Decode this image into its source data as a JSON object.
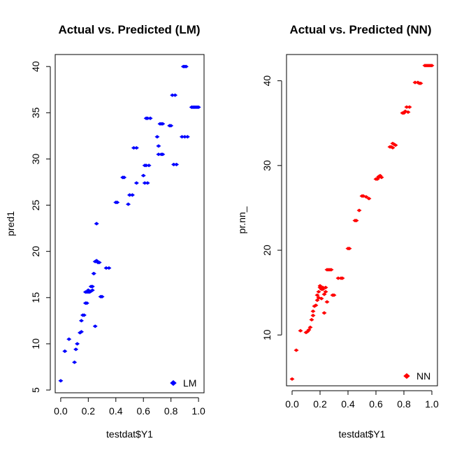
{
  "chart_data": [
    {
      "type": "scatter",
      "title": "Actual vs. Predicted (LM)",
      "xlabel": "testdat$Y1",
      "ylabel": "pred1",
      "xlim": [
        -0.04,
        1.04
      ],
      "ylim": [
        4.7,
        41.3
      ],
      "xticks": [
        "0.0",
        "0.2",
        "0.4",
        "0.6",
        "0.8",
        "1.0"
      ],
      "yticks": [
        "5",
        "10",
        "15",
        "20",
        "25",
        "30",
        "35",
        "40"
      ],
      "legend": {
        "label": "LM",
        "placement": "bottom-right"
      },
      "color": "#0000ff",
      "series": [
        {
          "x": [
            0.0,
            0.03,
            0.06,
            0.1,
            0.11,
            0.12,
            0.14,
            0.15,
            0.15,
            0.16,
            0.17,
            0.18,
            0.18,
            0.19,
            0.19,
            0.2,
            0.2,
            0.21,
            0.21,
            0.22,
            0.22,
            0.23,
            0.23,
            0.24,
            0.24,
            0.25,
            0.25,
            0.26,
            0.26,
            0.27,
            0.28,
            0.29,
            0.3,
            0.33,
            0.35,
            0.4,
            0.41,
            0.45,
            0.46,
            0.49,
            0.5,
            0.52,
            0.53,
            0.55,
            0.55,
            0.6,
            0.61,
            0.61,
            0.62,
            0.62,
            0.63,
            0.63,
            0.64,
            0.65,
            0.7,
            0.71,
            0.71,
            0.72,
            0.73,
            0.73,
            0.74,
            0.74,
            0.79,
            0.8,
            0.81,
            0.82,
            0.83,
            0.84,
            0.88,
            0.89,
            0.9,
            0.9,
            0.91,
            0.92,
            0.95,
            0.96,
            0.97,
            0.98,
            0.99,
            1.0
          ],
          "y": [
            6.0,
            9.2,
            10.5,
            8.0,
            9.4,
            10.0,
            11.2,
            11.3,
            12.5,
            13.1,
            13.1,
            14.4,
            15.6,
            15.6,
            14.4,
            15.8,
            15.6,
            15.7,
            15.6,
            16.2,
            15.7,
            16.2,
            15.8,
            17.6,
            17.6,
            18.9,
            11.9,
            23.0,
            19.0,
            18.8,
            18.8,
            15.1,
            15.1,
            18.2,
            18.2,
            25.3,
            25.3,
            28.0,
            28.0,
            25.1,
            26.1,
            26.1,
            31.2,
            31.2,
            27.4,
            28.2,
            27.4,
            29.3,
            29.3,
            34.4,
            34.4,
            27.4,
            29.3,
            34.4,
            32.4,
            30.5,
            31.4,
            33.8,
            30.5,
            33.8,
            30.5,
            33.8,
            33.6,
            33.6,
            36.9,
            29.4,
            36.9,
            29.4,
            32.4,
            40.0,
            40.0,
            32.4,
            40.0,
            32.4,
            35.6,
            35.6,
            35.6,
            35.6,
            35.6,
            35.6
          ]
        }
      ]
    },
    {
      "type": "scatter",
      "title": "Actual vs. Predicted (NN)",
      "xlabel": "testdat$Y1",
      "ylabel": "pr.nn_",
      "xlim": [
        -0.04,
        1.04
      ],
      "ylim": [
        4.0,
        43.1
      ],
      "xticks": [
        "0.0",
        "0.2",
        "0.4",
        "0.6",
        "0.8",
        "1.0"
      ],
      "yticks": [
        "10",
        "20",
        "30",
        "40"
      ],
      "legend": {
        "label": "NN",
        "placement": "bottom-right"
      },
      "color": "#ff0000",
      "series": [
        {
          "x": [
            0.0,
            0.03,
            0.06,
            0.1,
            0.11,
            0.12,
            0.13,
            0.14,
            0.15,
            0.15,
            0.16,
            0.17,
            0.18,
            0.18,
            0.19,
            0.19,
            0.2,
            0.2,
            0.21,
            0.21,
            0.22,
            0.22,
            0.23,
            0.23,
            0.24,
            0.24,
            0.25,
            0.25,
            0.26,
            0.27,
            0.28,
            0.29,
            0.3,
            0.33,
            0.35,
            0.36,
            0.4,
            0.41,
            0.45,
            0.46,
            0.48,
            0.5,
            0.51,
            0.53,
            0.55,
            0.6,
            0.61,
            0.62,
            0.62,
            0.63,
            0.64,
            0.7,
            0.71,
            0.72,
            0.72,
            0.73,
            0.74,
            0.79,
            0.8,
            0.81,
            0.82,
            0.83,
            0.84,
            0.88,
            0.9,
            0.91,
            0.92,
            0.95,
            0.96,
            0.97,
            0.98,
            0.99,
            1.0
          ],
          "y": [
            4.8,
            8.2,
            10.5,
            10.3,
            10.4,
            10.6,
            10.9,
            11.8,
            12.3,
            12.8,
            13.4,
            13.5,
            14.1,
            14.7,
            14.4,
            15.1,
            15.6,
            15.8,
            15.4,
            14.3,
            15.6,
            15.4,
            12.6,
            14.8,
            15.1,
            15.6,
            17.7,
            13.9,
            17.7,
            17.7,
            17.7,
            14.7,
            14.7,
            16.7,
            16.7,
            16.7,
            20.2,
            20.2,
            23.5,
            23.5,
            24.7,
            26.4,
            26.4,
            26.3,
            26.1,
            28.4,
            28.4,
            28.7,
            28.6,
            28.8,
            28.6,
            32.2,
            32.2,
            32.6,
            32.1,
            32.5,
            32.4,
            36.2,
            36.2,
            36.4,
            36.9,
            36.3,
            36.9,
            39.8,
            39.8,
            39.7,
            39.7,
            41.8,
            41.8,
            41.8,
            41.8,
            41.8,
            41.8
          ]
        }
      ]
    }
  ]
}
